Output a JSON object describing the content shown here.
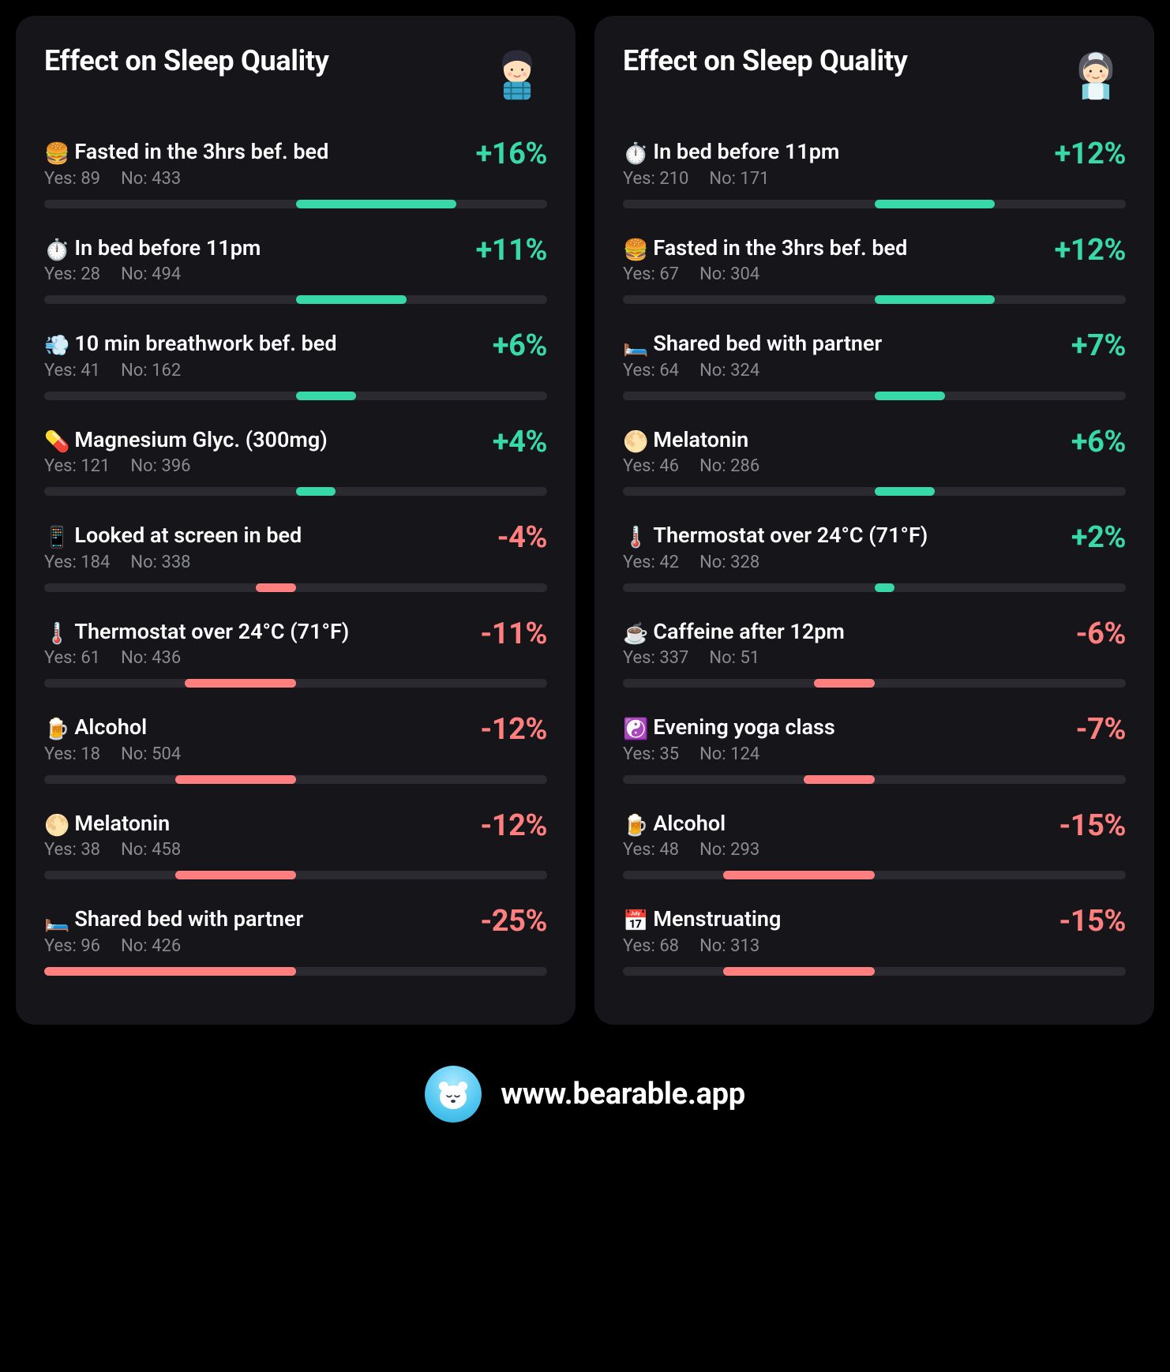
{
  "colors": {
    "background": "#000000",
    "panel_bg": "#15151a",
    "track_bg": "#2a2a30",
    "positive": "#38d9a9",
    "negative": "#ff7f7f",
    "text_primary": "#ffffff",
    "text_secondary": "#8a8a92"
  },
  "typography": {
    "title_fontsize": 36,
    "label_fontsize": 27,
    "counts_fontsize": 22,
    "pct_fontsize": 38,
    "footer_fontsize": 38
  },
  "bar_scale_max_pct": 25,
  "panels": [
    {
      "title": "Effect on Sleep Quality",
      "avatar": "boy",
      "factors": [
        {
          "emoji": "🍔",
          "label": "Fasted in the 3hrs bef. bed",
          "yes": 89,
          "no": 433,
          "pct": 16
        },
        {
          "emoji": "⏱️",
          "label": "In bed before 11pm",
          "yes": 28,
          "no": 494,
          "pct": 11
        },
        {
          "emoji": "💨",
          "label": "10 min breathwork bef. bed",
          "yes": 41,
          "no": 162,
          "pct": 6
        },
        {
          "emoji": "💊",
          "label": "Magnesium Glyc. (300mg)",
          "yes": 121,
          "no": 396,
          "pct": 4
        },
        {
          "emoji": "📱",
          "label": "Looked at screen in bed",
          "yes": 184,
          "no": 338,
          "pct": -4
        },
        {
          "emoji": "🌡️",
          "label": "Thermostat over 24°C (71°F)",
          "yes": 61,
          "no": 436,
          "pct": -11
        },
        {
          "emoji": "🍺",
          "label": "Alcohol",
          "yes": 18,
          "no": 504,
          "pct": -12
        },
        {
          "emoji": "🌕",
          "label": "Melatonin",
          "yes": 38,
          "no": 458,
          "pct": -12
        },
        {
          "emoji": "🛏️",
          "label": "Shared bed with partner",
          "yes": 96,
          "no": 426,
          "pct": -25
        }
      ]
    },
    {
      "title": "Effect on Sleep Quality",
      "avatar": "woman",
      "factors": [
        {
          "emoji": "⏱️",
          "label": "In bed before 11pm",
          "yes": 210,
          "no": 171,
          "pct": 12
        },
        {
          "emoji": "🍔",
          "label": "Fasted in the 3hrs bef. bed",
          "yes": 67,
          "no": 304,
          "pct": 12
        },
        {
          "emoji": "🛏️",
          "label": "Shared bed with partner",
          "yes": 64,
          "no": 324,
          "pct": 7
        },
        {
          "emoji": "🌕",
          "label": "Melatonin",
          "yes": 46,
          "no": 286,
          "pct": 6
        },
        {
          "emoji": "🌡️",
          "label": "Thermostat over 24°C (71°F)",
          "yes": 42,
          "no": 328,
          "pct": 2
        },
        {
          "emoji": "☕",
          "label": "Caffeine after 12pm",
          "yes": 337,
          "no": 51,
          "pct": -6
        },
        {
          "emoji": "☯️",
          "label": "Evening yoga class",
          "yes": 35,
          "no": 124,
          "pct": -7
        },
        {
          "emoji": "🍺",
          "label": "Alcohol",
          "yes": 48,
          "no": 293,
          "pct": -15
        },
        {
          "emoji": "📅",
          "label": "Menstruating",
          "yes": 68,
          "no": 313,
          "pct": -15
        }
      ]
    }
  ],
  "labels": {
    "yes_prefix": "Yes:",
    "no_prefix": "No:"
  },
  "footer": {
    "url": "www.bearable.app"
  }
}
